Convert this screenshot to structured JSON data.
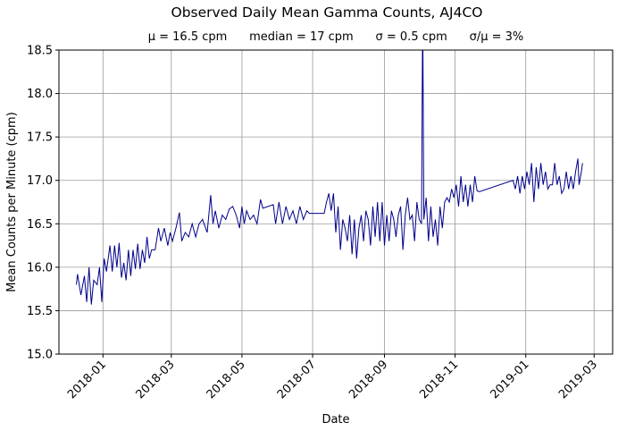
{
  "chart_data": {
    "type": "line",
    "title": "Observed Daily Mean Gamma Counts, AJ4CO",
    "subtitle": "μ = 16.5 cpm      median = 17 cpm      σ = 0.5 cpm      σ/μ = 3%",
    "xlabel": "Date",
    "ylabel": "Mean Counts per Minute (cpm)",
    "ylim": [
      15.0,
      18.5
    ],
    "xlim": [
      "2017-11-24",
      "2019-03-17"
    ],
    "yticks": [
      "15.0",
      "15.5",
      "16.0",
      "16.5",
      "17.0",
      "17.5",
      "18.0",
      "18.5"
    ],
    "xticks": [
      "2018-01",
      "2018-03",
      "2018-05",
      "2018-07",
      "2018-09",
      "2018-11",
      "2019-01",
      "2019-03"
    ],
    "grid": true,
    "line_color": "#00008b",
    "series": [
      {
        "x": [
          "2017-12-09",
          "2017-12-10",
          "2017-12-13",
          "2017-12-16",
          "2017-12-18",
          "2017-12-20",
          "2017-12-22",
          "2017-12-24",
          "2017-12-27",
          "2017-12-29",
          "2017-12-31",
          "2018-01-02",
          "2018-01-04",
          "2018-01-07",
          "2018-01-09",
          "2018-01-11",
          "2018-01-13",
          "2018-01-15",
          "2018-01-17",
          "2018-01-19",
          "2018-01-21",
          "2018-01-23",
          "2018-01-25",
          "2018-01-27",
          "2018-01-29",
          "2018-01-31",
          "2018-02-02",
          "2018-02-04",
          "2018-02-06",
          "2018-02-08",
          "2018-02-10",
          "2018-02-12",
          "2018-02-15",
          "2018-02-18",
          "2018-02-20",
          "2018-02-23",
          "2018-02-26",
          "2018-02-28",
          "2018-03-02",
          "2018-03-05",
          "2018-03-08",
          "2018-03-10",
          "2018-03-13",
          "2018-03-16",
          "2018-03-19",
          "2018-03-22",
          "2018-03-25",
          "2018-03-28",
          "2018-04-01",
          "2018-04-04",
          "2018-04-06",
          "2018-04-08",
          "2018-04-11",
          "2018-04-14",
          "2018-04-17",
          "2018-04-20",
          "2018-04-23",
          "2018-04-26",
          "2018-04-29",
          "2018-05-01",
          "2018-05-03",
          "2018-05-05",
          "2018-05-08",
          "2018-05-11",
          "2018-05-14",
          "2018-05-17",
          "2018-05-19",
          "2018-05-28",
          "2018-05-30",
          "2018-06-02",
          "2018-06-05",
          "2018-06-08",
          "2018-06-11",
          "2018-06-14",
          "2018-06-17",
          "2018-06-20",
          "2018-06-23",
          "2018-06-26",
          "2018-06-28",
          "2018-07-11",
          "2018-07-13",
          "2018-07-15",
          "2018-07-17",
          "2018-07-19",
          "2018-07-21",
          "2018-07-23",
          "2018-07-25",
          "2018-07-27",
          "2018-07-29",
          "2018-07-31",
          "2018-08-02",
          "2018-08-04",
          "2018-08-06",
          "2018-08-08",
          "2018-08-10",
          "2018-08-12",
          "2018-08-14",
          "2018-08-16",
          "2018-08-18",
          "2018-08-20",
          "2018-08-22",
          "2018-08-24",
          "2018-08-26",
          "2018-08-28",
          "2018-08-30",
          "2018-09-01",
          "2018-09-03",
          "2018-09-05",
          "2018-09-07",
          "2018-09-09",
          "2018-09-11",
          "2018-09-13",
          "2018-09-15",
          "2018-09-17",
          "2018-09-19",
          "2018-09-21",
          "2018-09-23",
          "2018-09-25",
          "2018-09-27",
          "2018-09-29",
          "2018-10-01",
          "2018-10-03",
          "2018-10-04",
          "2018-10-05",
          "2018-10-07",
          "2018-10-09",
          "2018-10-11",
          "2018-10-13",
          "2018-10-15",
          "2018-10-17",
          "2018-10-19",
          "2018-10-21",
          "2018-10-23",
          "2018-10-25",
          "2018-10-27",
          "2018-10-29",
          "2018-10-31",
          "2018-11-02",
          "2018-11-04",
          "2018-11-06",
          "2018-11-08",
          "2018-11-10",
          "2018-11-12",
          "2018-11-14",
          "2018-11-16",
          "2018-11-18",
          "2018-11-20",
          "2018-11-22",
          "2018-12-21",
          "2018-12-23",
          "2018-12-25",
          "2018-12-27",
          "2018-12-29",
          "2018-12-31",
          "2019-01-02",
          "2019-01-04",
          "2019-01-06",
          "2019-01-08",
          "2019-01-10",
          "2019-01-12",
          "2019-01-14",
          "2019-01-16",
          "2019-01-18",
          "2019-01-20",
          "2019-01-22",
          "2019-01-24",
          "2019-01-26",
          "2019-01-28",
          "2019-01-30",
          "2019-02-01",
          "2019-02-03",
          "2019-02-05",
          "2019-02-07",
          "2019-02-09",
          "2019-02-11",
          "2019-02-13",
          "2019-02-15",
          "2019-02-16",
          "2019-02-18",
          "2019-02-19"
        ],
        "y": [
          15.8,
          15.92,
          15.68,
          15.9,
          15.6,
          16.0,
          15.57,
          15.85,
          15.8,
          16.0,
          15.6,
          16.1,
          15.95,
          16.25,
          15.95,
          16.25,
          16.0,
          16.28,
          15.88,
          16.05,
          15.85,
          16.2,
          15.9,
          16.2,
          15.98,
          16.27,
          15.98,
          16.2,
          16.05,
          16.35,
          16.1,
          16.2,
          16.2,
          16.45,
          16.3,
          16.45,
          16.25,
          16.4,
          16.3,
          16.45,
          16.63,
          16.3,
          16.4,
          16.35,
          16.5,
          16.35,
          16.5,
          16.55,
          16.4,
          16.83,
          16.5,
          16.65,
          16.45,
          16.6,
          16.55,
          16.67,
          16.7,
          16.6,
          16.45,
          16.7,
          16.5,
          16.65,
          16.55,
          16.6,
          16.5,
          16.78,
          16.68,
          16.72,
          16.5,
          16.75,
          16.5,
          16.7,
          16.55,
          16.65,
          16.5,
          16.7,
          16.55,
          16.65,
          16.62,
          16.62,
          16.75,
          16.85,
          16.65,
          16.85,
          16.4,
          16.7,
          16.2,
          16.55,
          16.45,
          16.3,
          16.6,
          16.15,
          16.55,
          16.1,
          16.45,
          16.6,
          16.3,
          16.65,
          16.55,
          16.25,
          16.7,
          16.35,
          16.75,
          16.3,
          16.75,
          16.25,
          16.6,
          16.3,
          16.65,
          16.55,
          16.35,
          16.6,
          16.7,
          16.2,
          16.6,
          16.8,
          16.55,
          16.6,
          16.3,
          16.75,
          16.55,
          16.5,
          19.0,
          16.55,
          16.8,
          16.3,
          16.7,
          16.35,
          16.55,
          16.25,
          16.7,
          16.45,
          16.75,
          16.8,
          16.75,
          16.9,
          16.8,
          16.95,
          16.7,
          17.05,
          16.75,
          16.95,
          16.7,
          16.95,
          16.75,
          17.05,
          16.88,
          16.87,
          17.0,
          16.9,
          17.05,
          16.85,
          17.05,
          16.9,
          17.1,
          16.95,
          17.2,
          16.75,
          17.15,
          16.9,
          17.2,
          16.95,
          17.1,
          16.9,
          16.95,
          16.95,
          17.2,
          16.95,
          17.05,
          16.85,
          16.9,
          17.1,
          16.9,
          17.05,
          16.9,
          17.1,
          17.25,
          16.95,
          17.1,
          17.2
        ]
      }
    ]
  }
}
